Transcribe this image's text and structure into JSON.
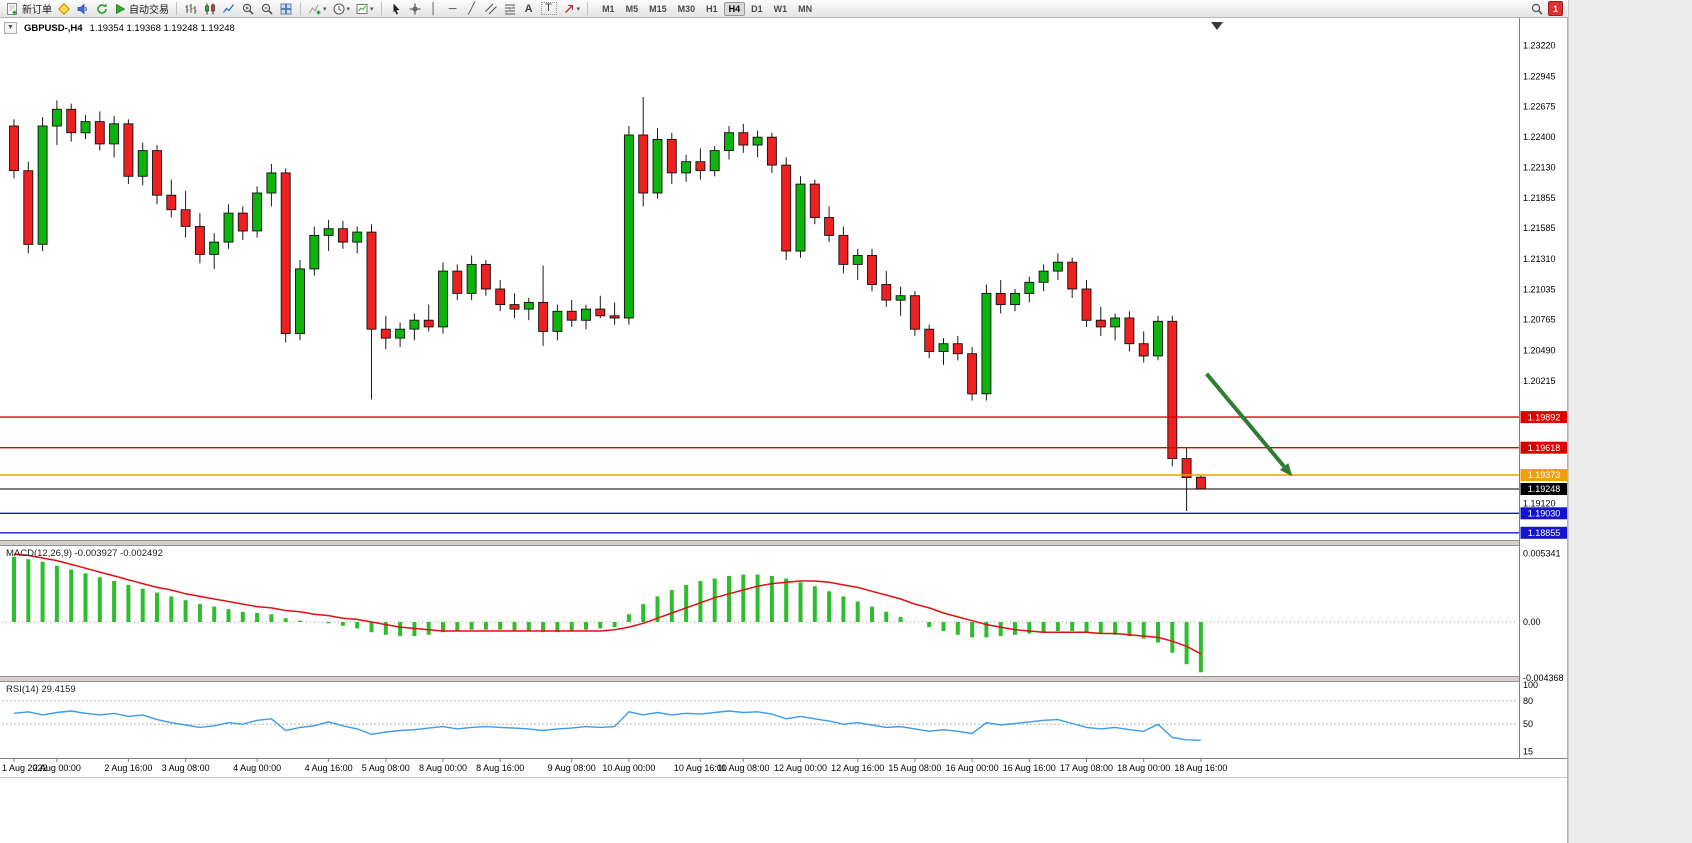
{
  "toolbar": {
    "new_order": "新订单",
    "autotrading": "自动交易",
    "timeframes": [
      "M1",
      "M5",
      "M15",
      "M30",
      "H1",
      "H4",
      "D1",
      "W1",
      "MN"
    ],
    "active_timeframe": "H4",
    "badge_count": "1"
  },
  "icons": {
    "text_tool": "A",
    "label_tool": "T",
    "vline": "│",
    "hline": "─",
    "trendline": "╱",
    "caret": "▾"
  },
  "chart": {
    "symbol": "GBPUSD-,H4",
    "ohlc": "1.19354 1.19368 1.19248 1.19248"
  },
  "macd": {
    "label": "MACD(12,26,9)",
    "value_main": "-0.003927",
    "value_signal": "-0.002492",
    "axis": [
      "0.005341",
      "0.00",
      "-0.004368"
    ]
  },
  "rsi": {
    "label": "RSI(14)",
    "value": "29.4159",
    "axis": [
      "100",
      "80",
      "50",
      "15"
    ],
    "levels": [
      80,
      50
    ]
  },
  "price_axis": {
    "ticks": [
      "1.23220",
      "1.22945",
      "1.22675",
      "1.22400",
      "1.22130",
      "1.21855",
      "1.21585",
      "1.21310",
      "1.21035",
      "1.20765",
      "1.20490",
      "1.20215",
      "1.19120"
    ]
  },
  "hlines": [
    {
      "label": "1.19892",
      "price": 1.19892,
      "color": "#dd0000"
    },
    {
      "label": "1.19618",
      "price": 1.19618,
      "color": "#dd0000"
    },
    {
      "label": "1.19373",
      "price": 1.19373,
      "color": "#f0a000"
    },
    {
      "label": "1.19030",
      "price": 1.1903,
      "color": "#1414cc"
    },
    {
      "label": "1.18855",
      "price": 1.18855,
      "color": "#1414cc"
    }
  ],
  "current_price": {
    "label": "1.19248",
    "price": 1.19248
  },
  "colors": {
    "bull": "#0db40d",
    "bear": "#ef2020",
    "wick": "#1a1a1a",
    "macd_histogram": "#2ebd2e",
    "macd_signal": "#e01010",
    "rsi_line": "#3d9be9",
    "accent_red": "#dd0000",
    "accent_orange": "#f0a000",
    "accent_blue": "#1414cc"
  },
  "annotations": {
    "arrow": {
      "color": "#2e7d32",
      "from": {
        "index": 83.4,
        "price": 1.2028
      },
      "to": {
        "index": 89.4,
        "price": 1.1936
      }
    }
  },
  "chart_data": {
    "type": "candlestick",
    "symbol": "GBPUSD",
    "period": "H4",
    "price_range_view": [
      1.1875,
      1.2345
    ],
    "candles": [
      [
        1.225,
        1.2256,
        1.2203,
        1.221
      ],
      [
        1.221,
        1.2218,
        1.2136,
        1.2144
      ],
      [
        1.2144,
        1.2258,
        1.2138,
        1.225
      ],
      [
        1.225,
        1.2273,
        1.2233,
        1.2265
      ],
      [
        1.2265,
        1.227,
        1.2236,
        1.2244
      ],
      [
        1.2244,
        1.226,
        1.2238,
        1.2254
      ],
      [
        1.2254,
        1.2263,
        1.2228,
        1.2234
      ],
      [
        1.2234,
        1.2259,
        1.2222,
        1.2252
      ],
      [
        1.2252,
        1.2256,
        1.2198,
        1.2205
      ],
      [
        1.2205,
        1.2235,
        1.2197,
        1.2228
      ],
      [
        1.2228,
        1.2233,
        1.218,
        1.2188
      ],
      [
        1.2188,
        1.2202,
        1.2168,
        1.2175
      ],
      [
        1.2175,
        1.2192,
        1.215,
        1.216
      ],
      [
        1.216,
        1.2172,
        1.2127,
        1.2135
      ],
      [
        1.2135,
        1.2154,
        1.2122,
        1.2146
      ],
      [
        1.2146,
        1.218,
        1.214,
        1.2172
      ],
      [
        1.2172,
        1.2178,
        1.2148,
        1.2156
      ],
      [
        1.2156,
        1.2196,
        1.215,
        1.219
      ],
      [
        1.219,
        1.2216,
        1.2178,
        1.2208
      ],
      [
        1.2208,
        1.2212,
        1.2056,
        1.2064
      ],
      [
        1.2064,
        1.213,
        1.2058,
        1.2122
      ],
      [
        1.2122,
        1.216,
        1.2116,
        1.2152
      ],
      [
        1.2152,
        1.2166,
        1.2138,
        1.2158
      ],
      [
        1.2158,
        1.2165,
        1.214,
        1.2146
      ],
      [
        1.2146,
        1.216,
        1.2136,
        1.2155
      ],
      [
        1.2155,
        1.2162,
        1.2005,
        1.2068
      ],
      [
        1.2068,
        1.208,
        1.205,
        1.206
      ],
      [
        1.206,
        1.2074,
        1.2052,
        1.2068
      ],
      [
        1.2068,
        1.2082,
        1.2058,
        1.2076
      ],
      [
        1.2076,
        1.209,
        1.2066,
        1.207
      ],
      [
        1.207,
        1.2128,
        1.2064,
        1.212
      ],
      [
        1.212,
        1.2126,
        1.2094,
        1.21
      ],
      [
        1.21,
        1.2134,
        1.2094,
        1.2126
      ],
      [
        1.2126,
        1.213,
        1.2098,
        1.2104
      ],
      [
        1.2104,
        1.2112,
        1.2084,
        1.209
      ],
      [
        1.209,
        1.21,
        1.2078,
        1.2086
      ],
      [
        1.2086,
        1.2096,
        1.2076,
        1.2092
      ],
      [
        1.2092,
        1.2125,
        1.2053,
        1.2066
      ],
      [
        1.2066,
        1.209,
        1.2058,
        1.2084
      ],
      [
        1.2084,
        1.2094,
        1.207,
        1.2076
      ],
      [
        1.2076,
        1.209,
        1.2068,
        1.2086
      ],
      [
        1.2086,
        1.2098,
        1.2078,
        1.208
      ],
      [
        1.208,
        1.2092,
        1.2072,
        1.2078
      ],
      [
        1.2078,
        1.225,
        1.2072,
        1.2242
      ],
      [
        1.2242,
        1.2276,
        1.2178,
        1.219
      ],
      [
        1.219,
        1.2248,
        1.2185,
        1.2238
      ],
      [
        1.2238,
        1.2244,
        1.2198,
        1.2208
      ],
      [
        1.2208,
        1.2224,
        1.22,
        1.2218
      ],
      [
        1.2218,
        1.223,
        1.2202,
        1.221
      ],
      [
        1.221,
        1.2232,
        1.2205,
        1.2228
      ],
      [
        1.2228,
        1.225,
        1.222,
        1.2244
      ],
      [
        1.2244,
        1.2252,
        1.2226,
        1.2233
      ],
      [
        1.2233,
        1.2246,
        1.2222,
        1.224
      ],
      [
        1.224,
        1.2244,
        1.2208,
        1.2215
      ],
      [
        1.2215,
        1.2222,
        1.213,
        1.2138
      ],
      [
        1.2138,
        1.2205,
        1.2132,
        1.2198
      ],
      [
        1.2198,
        1.2202,
        1.2162,
        1.2168
      ],
      [
        1.2168,
        1.2178,
        1.2146,
        1.2152
      ],
      [
        1.2152,
        1.216,
        1.2118,
        1.2126
      ],
      [
        1.2126,
        1.214,
        1.2112,
        1.2134
      ],
      [
        1.2134,
        1.214,
        1.2102,
        1.2108
      ],
      [
        1.2108,
        1.212,
        1.2088,
        1.2094
      ],
      [
        1.2094,
        1.2106,
        1.208,
        1.2098
      ],
      [
        1.2098,
        1.2102,
        1.2062,
        1.2068
      ],
      [
        1.2068,
        1.2072,
        1.2042,
        1.2048
      ],
      [
        1.2048,
        1.206,
        1.2036,
        1.2055
      ],
      [
        1.2055,
        1.2062,
        1.204,
        1.2046
      ],
      [
        1.2046,
        1.2052,
        1.2004,
        1.201
      ],
      [
        1.201,
        1.2108,
        1.2004,
        1.21
      ],
      [
        1.21,
        1.2112,
        1.2082,
        1.209
      ],
      [
        1.209,
        1.2104,
        1.2084,
        1.21
      ],
      [
        1.21,
        1.2115,
        1.2092,
        1.211
      ],
      [
        1.211,
        1.2126,
        1.2102,
        1.212
      ],
      [
        1.212,
        1.2136,
        1.2112,
        1.2128
      ],
      [
        1.2128,
        1.2132,
        1.2096,
        1.2104
      ],
      [
        1.2104,
        1.2112,
        1.207,
        1.2076
      ],
      [
        1.2076,
        1.2088,
        1.2062,
        1.207
      ],
      [
        1.207,
        1.2082,
        1.2058,
        1.2078
      ],
      [
        1.2078,
        1.2084,
        1.2048,
        1.2055
      ],
      [
        1.2055,
        1.2066,
        1.2038,
        1.2044
      ],
      [
        1.2044,
        1.208,
        1.204,
        1.2075
      ],
      [
        1.2075,
        1.208,
        1.1945,
        1.1952
      ],
      [
        1.1952,
        1.1962,
        1.1905,
        1.1935
      ],
      [
        1.19354,
        1.19368,
        1.19248,
        1.19248
      ]
    ],
    "time_labels": [
      {
        "t": "1 Aug 2022",
        "i": 0
      },
      {
        "t": "2 Aug 00:00",
        "i": 3
      },
      {
        "t": "2 Aug 16:00",
        "i": 8
      },
      {
        "t": "3 Aug 08:00",
        "i": 12
      },
      {
        "t": "4 Aug 00:00",
        "i": 17
      },
      {
        "t": "4 Aug 16:00",
        "i": 22
      },
      {
        "t": "5 Aug 08:00",
        "i": 26
      },
      {
        "t": "8 Aug 00:00",
        "i": 30
      },
      {
        "t": "8 Aug 16:00",
        "i": 34
      },
      {
        "t": "9 Aug 08:00",
        "i": 39
      },
      {
        "t": "10 Aug 00:00",
        "i": 43
      },
      {
        "t": "10 Aug 16:00",
        "i": 48
      },
      {
        "t": "11 Aug 08:00",
        "i": 51
      },
      {
        "t": "12 Aug 00:00",
        "i": 55
      },
      {
        "t": "12 Aug 16:00",
        "i": 59
      },
      {
        "t": "15 Aug 08:00",
        "i": 63
      },
      {
        "t": "16 Aug 00:00",
        "i": 67
      },
      {
        "t": "16 Aug 16:00",
        "i": 71
      },
      {
        "t": "17 Aug 08:00",
        "i": 75
      },
      {
        "t": "18 Aug 00:00",
        "i": 79
      },
      {
        "t": "18 Aug 16:00",
        "i": 83
      }
    ],
    "macd": {
      "histogram": [
        0.0051,
        0.0049,
        0.0047,
        0.0044,
        0.0041,
        0.0038,
        0.0035,
        0.0032,
        0.0029,
        0.0026,
        0.0023,
        0.002,
        0.0017,
        0.0014,
        0.0012,
        0.001,
        0.0008,
        0.0007,
        0.0006,
        0.0003,
        0.0001,
        0.0,
        -0.0001,
        -0.0003,
        -0.0005,
        -0.0008,
        -0.001,
        -0.0011,
        -0.0011,
        -0.001,
        -0.0008,
        -0.0007,
        -0.0006,
        -0.0006,
        -0.0006,
        -0.0007,
        -0.0007,
        -0.0008,
        -0.0008,
        -0.0007,
        -0.0006,
        -0.0005,
        -0.0004,
        0.0006,
        0.0014,
        0.002,
        0.0025,
        0.0029,
        0.0032,
        0.0034,
        0.0036,
        0.0037,
        0.0037,
        0.0036,
        0.0034,
        0.0031,
        0.0028,
        0.0024,
        0.002,
        0.0016,
        0.0012,
        0.0008,
        0.0004,
        0.0,
        -0.0004,
        -0.0007,
        -0.001,
        -0.0012,
        -0.0012,
        -0.0011,
        -0.001,
        -0.0009,
        -0.0008,
        -0.0007,
        -0.0007,
        -0.0008,
        -0.0009,
        -0.001,
        -0.0011,
        -0.0013,
        -0.0016,
        -0.0024,
        -0.0033,
        -0.003927
      ],
      "signal": [
        0.0053,
        0.0052,
        0.005,
        0.0048,
        0.0045,
        0.0042,
        0.0039,
        0.0036,
        0.0033,
        0.003,
        0.0027,
        0.0025,
        0.0022,
        0.002,
        0.0018,
        0.0016,
        0.0014,
        0.0012,
        0.0011,
        0.0009,
        0.0008,
        0.0006,
        0.0005,
        0.0003,
        0.0002,
        0.0,
        -0.0002,
        -0.0004,
        -0.0005,
        -0.0006,
        -0.0007,
        -0.0007,
        -0.0007,
        -0.0007,
        -0.0007,
        -0.0007,
        -0.0007,
        -0.0007,
        -0.0007,
        -0.0007,
        -0.0007,
        -0.0007,
        -0.0006,
        -0.0004,
        -0.0001,
        0.0003,
        0.0007,
        0.0011,
        0.0015,
        0.0019,
        0.0022,
        0.0025,
        0.0028,
        0.003,
        0.0031,
        0.0032,
        0.0032,
        0.0031,
        0.0029,
        0.0027,
        0.0024,
        0.0021,
        0.0018,
        0.0014,
        0.0011,
        0.0007,
        0.0004,
        0.0001,
        -0.0002,
        -0.0004,
        -0.0006,
        -0.0007,
        -0.0008,
        -0.0008,
        -0.0008,
        -0.0008,
        -0.0009,
        -0.0009,
        -0.001,
        -0.0011,
        -0.0012,
        -0.0015,
        -0.0019,
        -0.002492
      ]
    },
    "rsi": {
      "values": [
        64,
        66,
        62,
        65,
        67,
        64,
        62,
        64,
        60,
        62,
        56,
        52,
        49,
        46,
        48,
        52,
        50,
        55,
        57,
        42,
        46,
        48,
        53,
        48,
        44,
        37,
        40,
        42,
        43,
        45,
        47,
        44,
        46,
        47,
        46,
        45,
        44,
        42,
        44,
        45,
        47,
        46,
        47,
        66,
        62,
        65,
        62,
        64,
        63,
        65,
        67,
        65,
        66,
        63,
        57,
        60,
        57,
        54,
        50,
        52,
        49,
        46,
        47,
        44,
        41,
        43,
        41,
        38,
        52,
        49,
        51,
        53,
        55,
        56,
        51,
        46,
        44,
        46,
        43,
        41,
        50,
        33,
        30,
        29.4159
      ]
    }
  }
}
